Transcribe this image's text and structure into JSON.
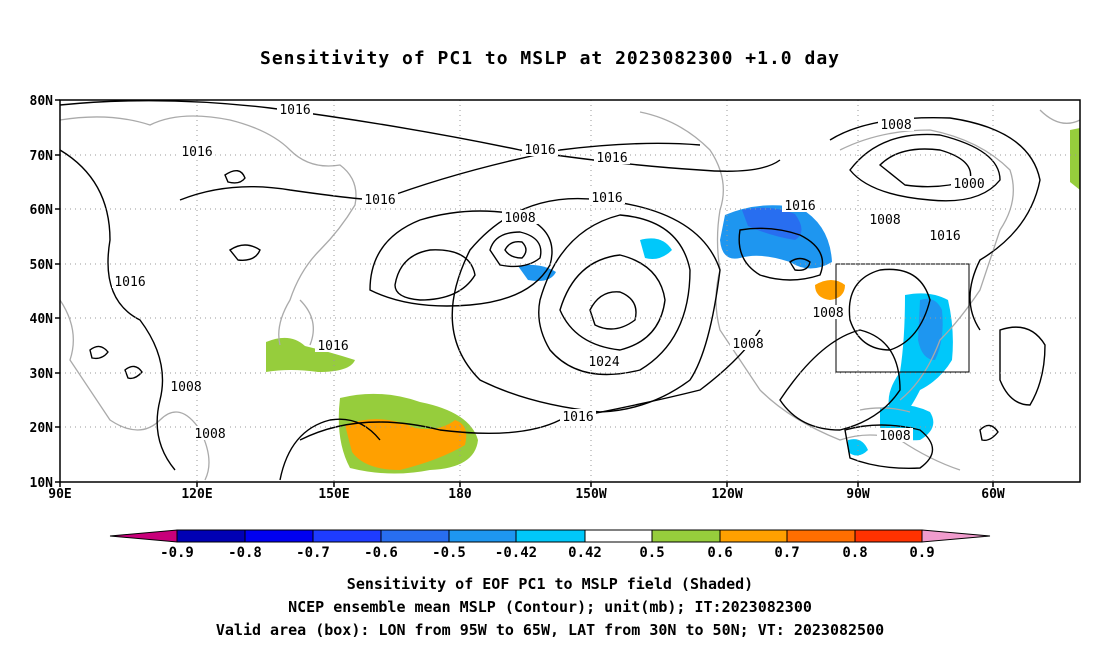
{
  "title": "Sensitivity of PC1 to MSLP at 2023082300 +1.0 day",
  "lat_ticks": [
    "80N",
    "70N",
    "60N",
    "50N",
    "40N",
    "30N",
    "20N",
    "10N"
  ],
  "lon_ticks": [
    "90E",
    "120E",
    "150E",
    "180",
    "150W",
    "120W",
    "90W",
    "60W"
  ],
  "contour_labels": [
    "1016",
    "1016",
    "1016",
    "1016",
    "1016",
    "1016",
    "1016",
    "1016",
    "1016",
    "1016",
    "1016",
    "1008",
    "1008",
    "1008",
    "1008",
    "1008",
    "1008",
    "1008",
    "1008",
    "1000",
    "1024"
  ],
  "colorbar": {
    "labels": [
      "-0.9",
      "-0.8",
      "-0.7",
      "-0.6",
      "-0.5",
      "-0.42",
      "0.42",
      "0.5",
      "0.6",
      "0.7",
      "0.8",
      "0.9"
    ],
    "colors": [
      "#c8007a",
      "#0000b4",
      "#0000f0",
      "#1e3cff",
      "#286ef0",
      "#1e96f0",
      "#00c8fa",
      "#ffffff",
      "#96cd3c",
      "#ffa000",
      "#ff6e00",
      "#ff3200",
      "#ff0000",
      "#f09ccd"
    ]
  },
  "captions": [
    "Sensitivity of EOF PC1 to MSLP field (Shaded)",
    "NCEP ensemble mean MSLP (Contour); unit(mb); IT:2023082300",
    "Valid area (box): LON from 95W to 65W, LAT from 30N to 50N; VT: 2023082500"
  ]
}
